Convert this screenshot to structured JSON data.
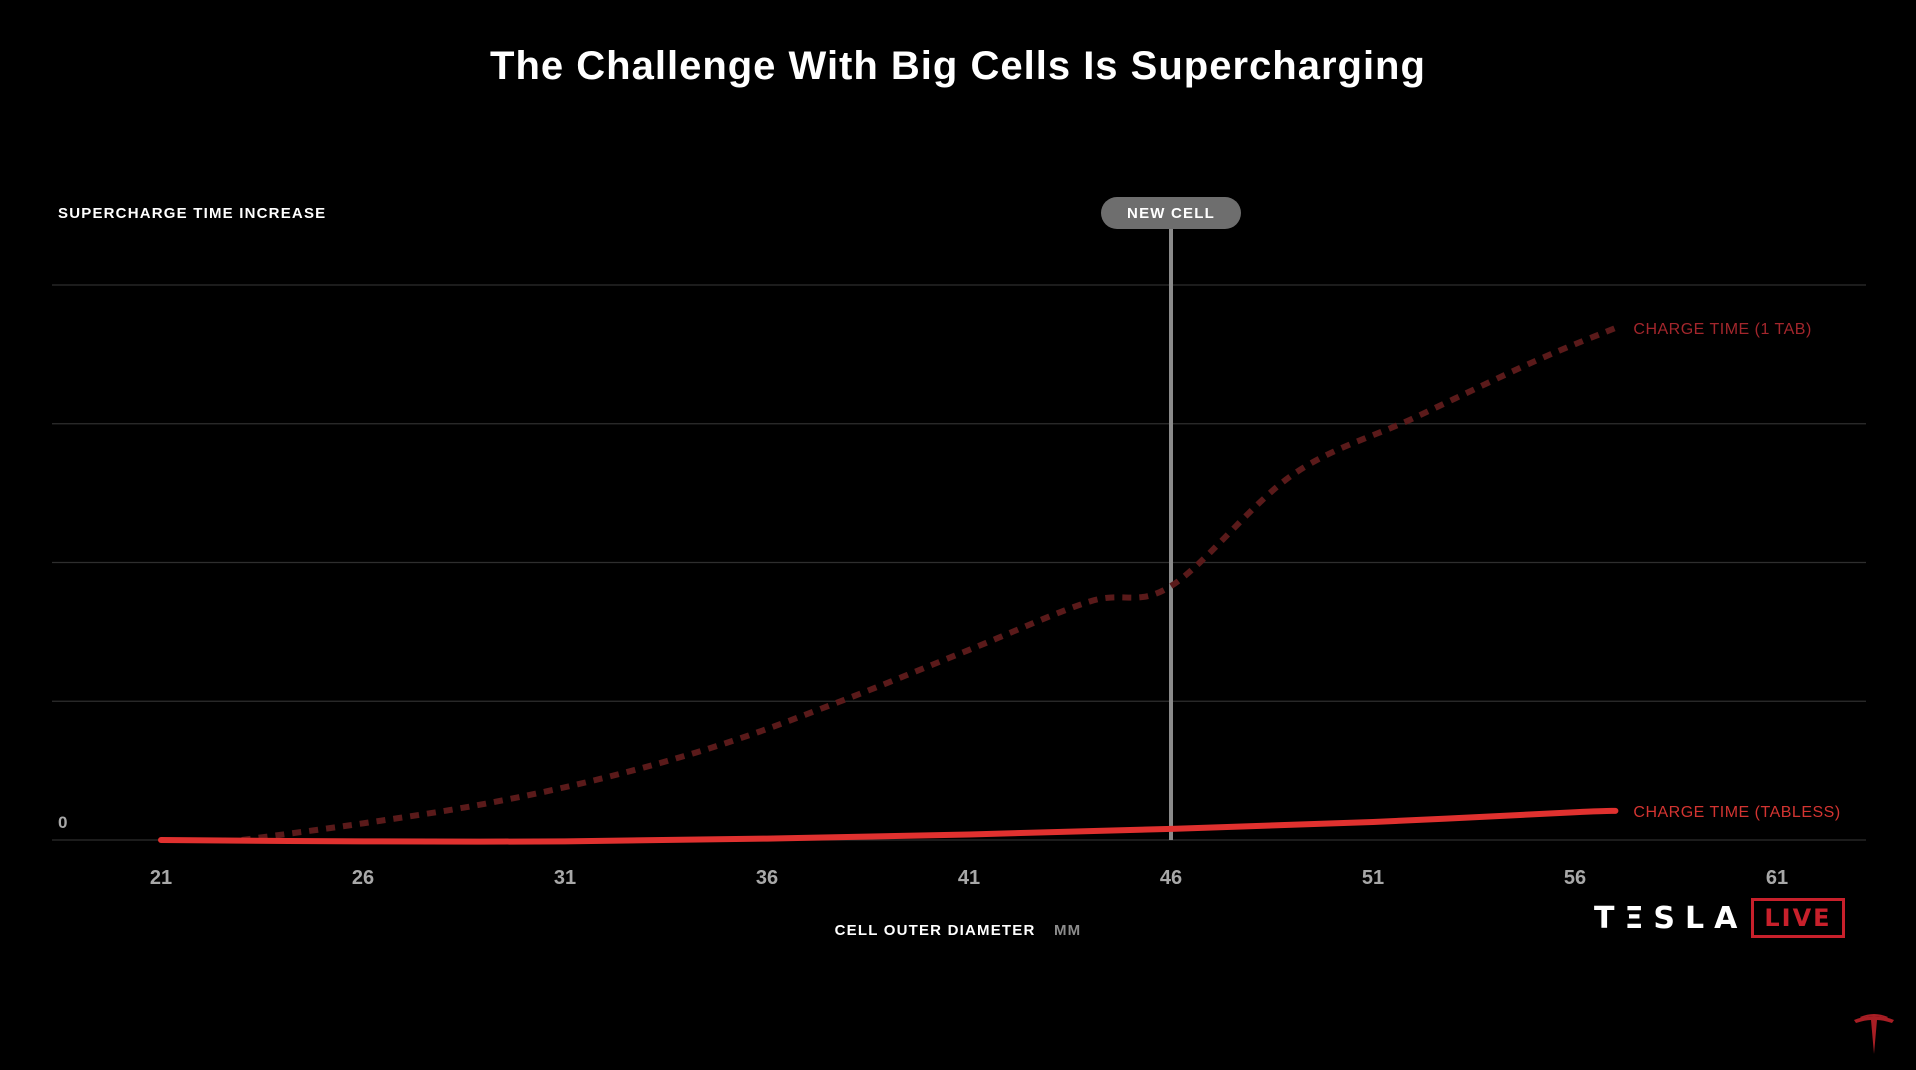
{
  "chart_data": {
    "type": "line",
    "title": "The Challenge With Big Cells Is Supercharging",
    "ylabel": "SUPERCHARGE TIME INCREASE",
    "xlabel": "CELL OUTER DIAMETER",
    "xunit": "MM",
    "x_ticks": [
      21,
      26,
      31,
      36,
      41,
      46,
      51,
      56,
      61
    ],
    "y_tick_labels": [
      {
        "value": 0,
        "label": "0"
      }
    ],
    "xlim": [
      19,
      64
    ],
    "ylim": [
      0,
      4.0
    ],
    "grid": true,
    "series": [
      {
        "name": "CHARGE TIME (1 TAB)",
        "style": "dotted",
        "color": "#5a1a1a",
        "label_color": "#a3262c",
        "x": [
          23,
          26,
          29,
          32,
          35,
          38,
          41,
          44,
          46,
          49,
          52,
          55,
          57
        ],
        "y": [
          0.0,
          0.12,
          0.26,
          0.45,
          0.7,
          1.02,
          1.37,
          1.72,
          1.83,
          2.63,
          3.04,
          3.45,
          3.69
        ]
      },
      {
        "name": "CHARGE TIME (TABLESS)",
        "style": "solid",
        "color": "#e0312f",
        "label_color": "#d33431",
        "x": [
          21,
          26,
          31,
          36,
          41,
          46,
          51,
          56,
          57
        ],
        "y": [
          0.0,
          -0.01,
          -0.01,
          0.01,
          0.04,
          0.08,
          0.13,
          0.2,
          0.21
        ]
      }
    ],
    "annotations": [
      {
        "label": "NEW CELL",
        "x": 46
      }
    ]
  },
  "brand": {
    "word": "TΞSLA",
    "live": "LIVE"
  },
  "colors": {
    "background": "#000000",
    "grid": "#2e2e2e",
    "tick_text": "#a8a8a8",
    "marker_line": "#8a8a8a",
    "marker_badge": "#6e6e6e",
    "accent_red": "#c8202b"
  }
}
